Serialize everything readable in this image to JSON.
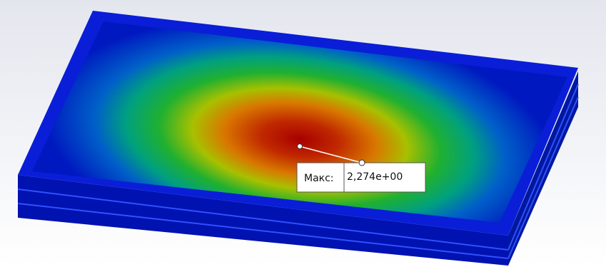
{
  "annotation": {
    "label": "Макс:",
    "value": "2,274e+00"
  }
}
